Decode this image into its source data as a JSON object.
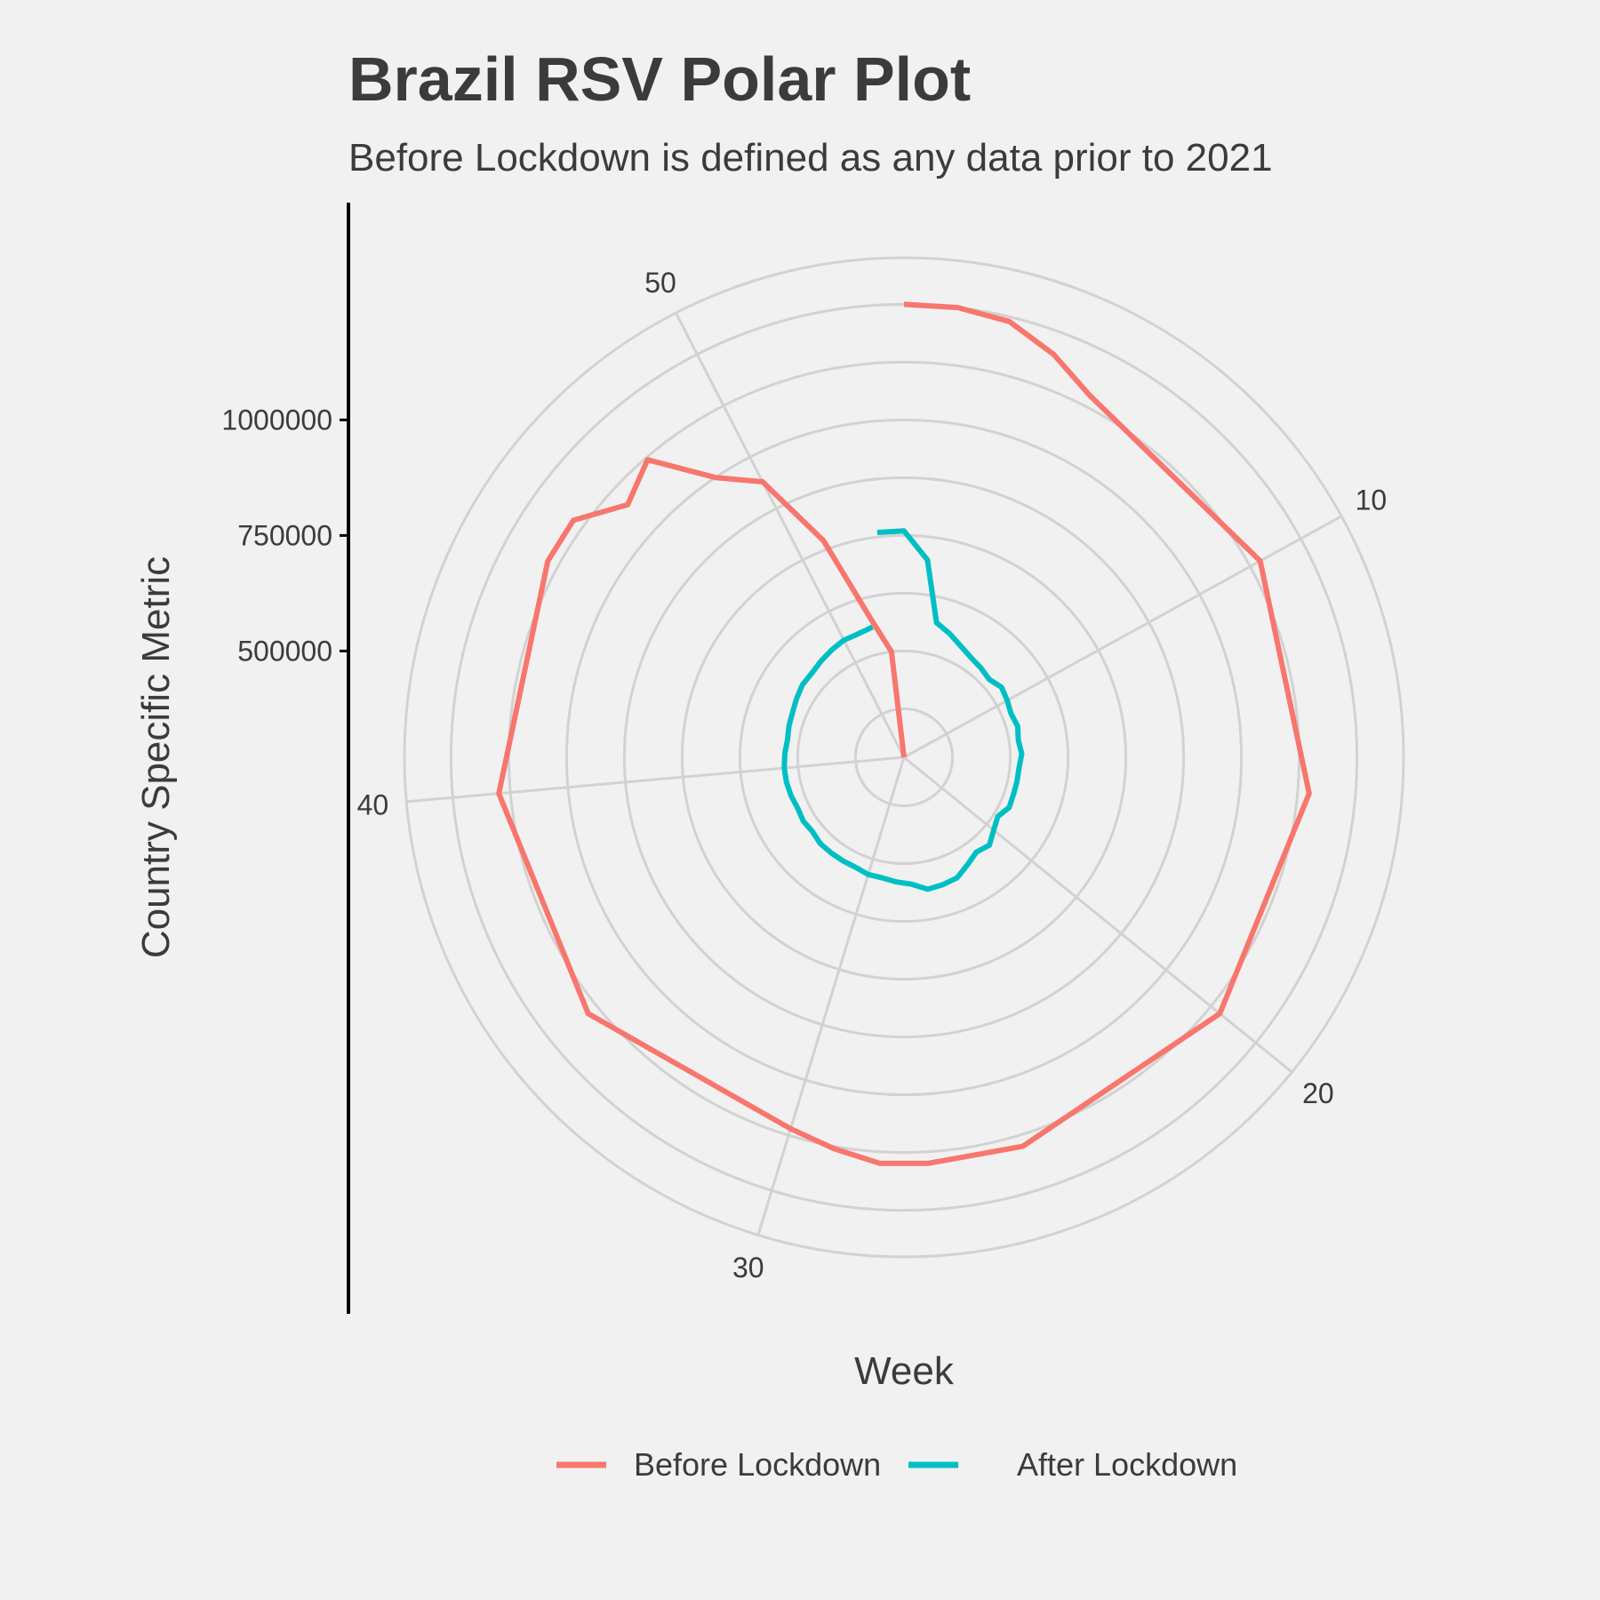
{
  "chart_data": {
    "type": "line",
    "coordinate_system": "polar",
    "title": "Brazil RSV Polar Plot",
    "subtitle": "Before Lockdown is defined as any data prior to 2021",
    "xlabel": "Week",
    "ylabel": "Country Specific Metric",
    "x_ticks": [
      10,
      20,
      30,
      40,
      50
    ],
    "y_ticks": [
      500000,
      750000,
      1000000
    ],
    "y_tick_labels": [
      "500000",
      "750000",
      "1000000"
    ],
    "ylim": [
      270000,
      1300000
    ],
    "grid": true,
    "legend_position": "bottom",
    "series": [
      {
        "name": "Before Lockdown",
        "color": "#F8766D",
        "x": [
          1,
          2,
          3,
          4,
          5,
          10,
          15,
          20,
          25,
          27,
          28,
          29,
          30,
          35,
          40,
          45,
          46,
          47,
          48,
          49,
          50,
          51,
          52,
          53,
          1
        ],
        "y": [
          1250000,
          1250000,
          1240000,
          1200000,
          1150000,
          1150000,
          1150000,
          1150000,
          1150000,
          1150000,
          1150000,
          1130000,
          1110000,
          1150000,
          1150000,
          1150000,
          1150000,
          1080000,
          1120000,
          1000000,
          940000,
          770000,
          580000,
          500000,
          270000
        ]
      },
      {
        "name": "After Lockdown",
        "color": "#00BFC4",
        "x": [
          53,
          1,
          2,
          3,
          4,
          5,
          6,
          7,
          8,
          9,
          10,
          11,
          12,
          13,
          14,
          15,
          16,
          17,
          18,
          19,
          20,
          21,
          22,
          23,
          24,
          25,
          26,
          27,
          28,
          29,
          30,
          31,
          32,
          33,
          34,
          35,
          36,
          37,
          38,
          39,
          40,
          41,
          42,
          43,
          44,
          45,
          46,
          47,
          48,
          49,
          50,
          51,
          52
        ],
        "y": [
          760000,
          760000,
          700000,
          570000,
          555000,
          540000,
          530000,
          525000,
          520000,
          530000,
          525000,
          520000,
          525000,
          520000,
          525000,
          520000,
          520000,
          520000,
          522000,
          510000,
          520000,
          535000,
          528000,
          540000,
          555000,
          558000,
          560000,
          545000,
          540000,
          535000,
          535000,
          530000,
          530000,
          530000,
          530000,
          525000,
          528000,
          525000,
          528000,
          530000,
          530000,
          528000,
          525000,
          528000,
          530000,
          535000,
          540000,
          540000,
          545000,
          550000,
          555000,
          555000,
          560000
        ]
      }
    ]
  }
}
